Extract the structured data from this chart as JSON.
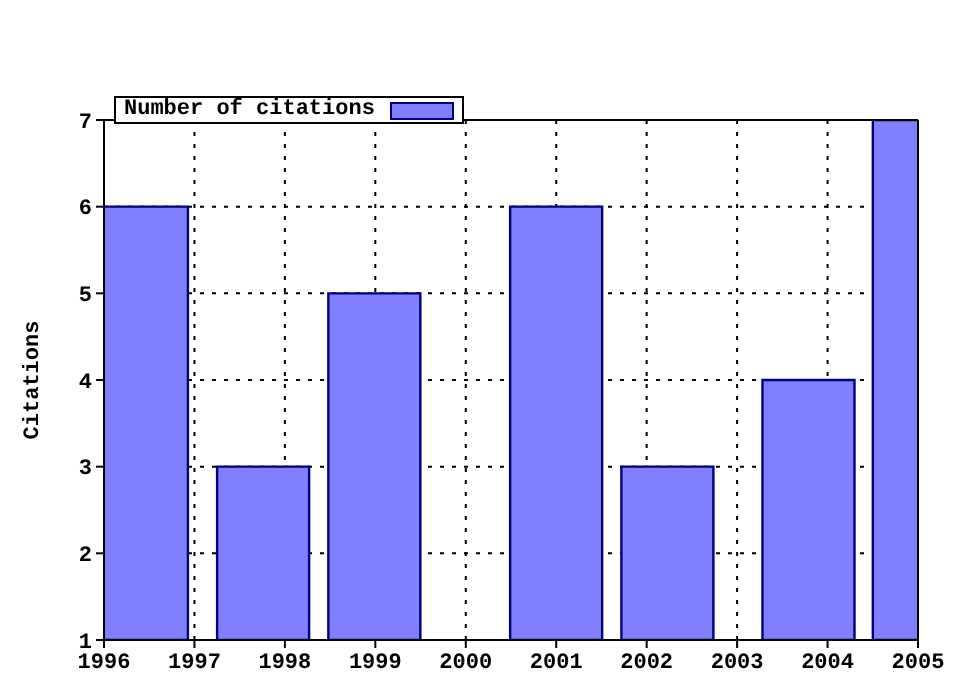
{
  "chart_data": {
    "type": "bar",
    "ylabel": "Citations",
    "x": [
      1996.41,
      1997.75,
      1998.98,
      2000.99,
      2002.22,
      2003.78,
      2005.0
    ],
    "series": [
      {
        "name": "Number of citations",
        "color": "#8080ff",
        "values": [
          6,
          3,
          5,
          6,
          3,
          4,
          7
        ]
      }
    ],
    "xlim": [
      1996,
      2005
    ],
    "xticks": [
      1996,
      1997,
      1998,
      1999,
      2000,
      2001,
      2002,
      2003,
      2004,
      2005
    ],
    "ylim": [
      1,
      7
    ],
    "yticks": [
      1,
      2,
      3,
      4,
      5,
      6,
      7
    ],
    "grid": true,
    "legend": "top left"
  }
}
